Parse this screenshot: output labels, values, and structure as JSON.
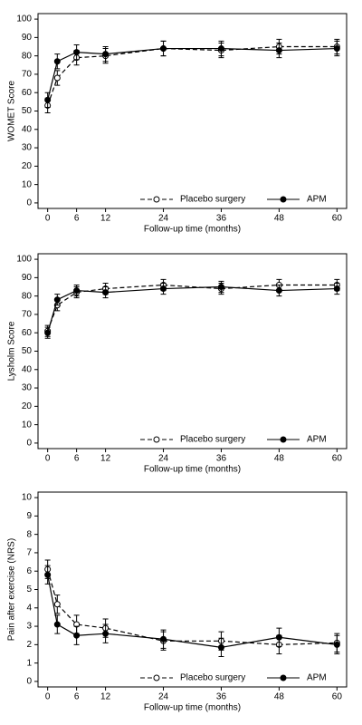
{
  "chart_data": [
    {
      "type": "line",
      "xlabel": "Follow-up time (months)",
      "ylabel": "WOMET Score",
      "x": [
        0,
        2,
        6,
        12,
        24,
        36,
        48,
        60
      ],
      "xlim": [
        -2,
        62
      ],
      "xticks": [
        0,
        6,
        12,
        24,
        36,
        48,
        60
      ],
      "ylim": [
        -3,
        103
      ],
      "yticks": [
        0,
        10,
        20,
        30,
        40,
        50,
        60,
        70,
        80,
        90,
        100
      ],
      "legend": "bottom-right",
      "series": [
        {
          "name": "Placebo surgery",
          "color": "#000000",
          "dashed": true,
          "marker": "open",
          "values": [
            53,
            68,
            79,
            80,
            84,
            83,
            85,
            85
          ],
          "errors": [
            4,
            4,
            4,
            4,
            4,
            4,
            4,
            4
          ]
        },
        {
          "name": "APM",
          "color": "#000000",
          "dashed": false,
          "marker": "filled",
          "values": [
            56,
            77,
            82,
            81,
            84,
            84,
            83,
            84
          ],
          "errors": [
            4,
            4,
            4,
            4,
            4,
            4,
            4,
            4
          ]
        }
      ]
    },
    {
      "type": "line",
      "xlabel": "Follow-up time (months)",
      "ylabel": "Lysholm Score",
      "x": [
        0,
        2,
        6,
        12,
        24,
        36,
        48,
        60
      ],
      "xlim": [
        -2,
        62
      ],
      "xticks": [
        0,
        6,
        12,
        24,
        36,
        48,
        60
      ],
      "ylim": [
        -3,
        103
      ],
      "yticks": [
        0,
        10,
        20,
        30,
        40,
        50,
        60,
        70,
        80,
        90,
        100
      ],
      "legend": "bottom-right",
      "series": [
        {
          "name": "Placebo surgery",
          "color": "#000000",
          "dashed": true,
          "marker": "open",
          "values": [
            61,
            75,
            82,
            84,
            86,
            84,
            86,
            86
          ],
          "errors": [
            3,
            3,
            3,
            3,
            3,
            3,
            3,
            3
          ]
        },
        {
          "name": "APM",
          "color": "#000000",
          "dashed": false,
          "marker": "filled",
          "values": [
            60,
            78,
            83,
            82,
            84,
            85,
            83,
            84
          ],
          "errors": [
            3,
            3,
            3,
            3,
            3,
            3,
            3,
            3
          ]
        }
      ]
    },
    {
      "type": "line",
      "xlabel": "Follow-up time (months)",
      "ylabel": "Pain after exercise (NRS)",
      "x": [
        0,
        2,
        6,
        12,
        24,
        36,
        48,
        60
      ],
      "xlim": [
        -2,
        62
      ],
      "xticks": [
        0,
        6,
        12,
        24,
        36,
        48,
        60
      ],
      "ylim": [
        -0.3,
        10.3
      ],
      "yticks": [
        0,
        1,
        2,
        3,
        4,
        5,
        6,
        7,
        8,
        9,
        10
      ],
      "legend": "bottom-right",
      "series": [
        {
          "name": "Placebo surgery",
          "color": "#000000",
          "dashed": true,
          "marker": "open",
          "values": [
            6.1,
            4.2,
            3.1,
            2.9,
            2.2,
            2.2,
            2.0,
            2.1
          ],
          "errors": [
            0.5,
            0.5,
            0.5,
            0.5,
            0.5,
            0.5,
            0.5,
            0.5
          ]
        },
        {
          "name": "APM",
          "color": "#000000",
          "dashed": false,
          "marker": "filled",
          "values": [
            5.8,
            3.1,
            2.5,
            2.6,
            2.3,
            1.85,
            2.4,
            2.0
          ],
          "errors": [
            0.5,
            0.5,
            0.5,
            0.5,
            0.5,
            0.5,
            0.5,
            0.5
          ]
        }
      ]
    }
  ]
}
